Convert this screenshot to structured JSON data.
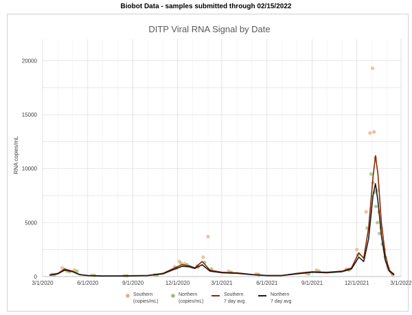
{
  "header": {
    "text": "Biobot Data - samples submitted through 02/15/2022"
  },
  "colors": {
    "southern_points": "#f0a878",
    "northern_points": "#90c070",
    "southern_avg": "#8b2500",
    "northern_avg": "#1a1a1a",
    "grid": "#d9d9d9"
  },
  "chart_data": {
    "type": "line",
    "title": "DITP Viral RNA Signal by Date",
    "ylabel": "RNA copies/mL",
    "xlabel": "",
    "ylim": [
      0,
      22000
    ],
    "yticks": [
      0,
      5000,
      10000,
      15000,
      20000
    ],
    "xlim": [
      "2020-03-01",
      "2022-03-01"
    ],
    "xticks": [
      "3/1/2020",
      "6/1/2020",
      "9/1/2020",
      "12/1/2020",
      "3/1/2021",
      "6/1/2021",
      "9/1/2021",
      "12/1/2021",
      "3/1/2022"
    ],
    "xtick_dates": [
      "2020-03-01",
      "2020-06-01",
      "2020-09-01",
      "2020-12-01",
      "2021-03-01",
      "2021-06-01",
      "2021-09-01",
      "2021-12-01",
      "2022-03-01"
    ],
    "grid": true,
    "legend_position": "bottom",
    "legend": [
      {
        "label": "Southern",
        "label2": "(copies/mL)",
        "kind": "marker",
        "color": "#f0a878"
      },
      {
        "label": "Northern",
        "label2": "(copies/mL)",
        "kind": "marker",
        "color": "#90c070"
      },
      {
        "label": "Southern",
        "label2": "7 day avg",
        "kind": "line",
        "color": "#8b2500"
      },
      {
        "label": "Northern",
        "label2": "7 day avg",
        "kind": "line",
        "color": "#1a1a1a"
      }
    ],
    "series": [
      {
        "name": "Southern 7 day avg",
        "x": [
          "2020-03-15",
          "2020-04-01",
          "2020-04-15",
          "2020-05-01",
          "2020-05-15",
          "2020-06-01",
          "2020-07-01",
          "2020-08-01",
          "2020-09-01",
          "2020-10-01",
          "2020-11-01",
          "2020-11-20",
          "2020-12-10",
          "2020-12-25",
          "2021-01-05",
          "2021-01-20",
          "2021-02-05",
          "2021-03-01",
          "2021-04-01",
          "2021-05-01",
          "2021-06-01",
          "2021-07-01",
          "2021-08-01",
          "2021-09-01",
          "2021-10-01",
          "2021-11-01",
          "2021-11-20",
          "2021-12-05",
          "2021-12-15",
          "2021-12-25",
          "2022-01-03",
          "2022-01-08",
          "2022-01-13",
          "2022-01-20",
          "2022-01-28",
          "2022-02-05",
          "2022-02-15"
        ],
        "y": [
          150,
          300,
          700,
          500,
          200,
          100,
          60,
          60,
          80,
          100,
          300,
          700,
          1100,
          1000,
          800,
          1400,
          600,
          400,
          350,
          200,
          100,
          100,
          300,
          450,
          400,
          500,
          800,
          2200,
          1700,
          4500,
          9200,
          11200,
          9500,
          5000,
          2000,
          600,
          200
        ]
      },
      {
        "name": "Northern 7 day avg",
        "x": [
          "2020-03-15",
          "2020-04-01",
          "2020-04-15",
          "2020-05-01",
          "2020-05-15",
          "2020-06-01",
          "2020-07-01",
          "2020-08-01",
          "2020-09-01",
          "2020-10-01",
          "2020-11-01",
          "2020-11-20",
          "2020-12-10",
          "2020-12-25",
          "2021-01-05",
          "2021-01-20",
          "2021-02-05",
          "2021-03-01",
          "2021-04-01",
          "2021-05-01",
          "2021-06-01",
          "2021-07-01",
          "2021-08-01",
          "2021-09-01",
          "2021-10-01",
          "2021-11-01",
          "2021-11-20",
          "2021-12-05",
          "2021-12-15",
          "2021-12-25",
          "2022-01-03",
          "2022-01-08",
          "2022-01-13",
          "2022-01-20",
          "2022-01-28",
          "2022-02-05",
          "2022-02-15"
        ],
        "y": [
          120,
          250,
          600,
          450,
          180,
          90,
          50,
          50,
          70,
          90,
          250,
          600,
          950,
          900,
          750,
          1100,
          500,
          350,
          300,
          180,
          90,
          90,
          250,
          400,
          350,
          450,
          700,
          1800,
          1400,
          3500,
          7500,
          8600,
          7000,
          3800,
          1500,
          500,
          150
        ]
      },
      {
        "name": "Southern (copies/mL)",
        "x": [
          "2020-03-20",
          "2020-04-10",
          "2020-04-20",
          "2020-05-05",
          "2020-06-10",
          "2020-08-15",
          "2020-10-15",
          "2020-11-25",
          "2020-12-05",
          "2020-12-15",
          "2021-01-10",
          "2021-01-22",
          "2021-02-01",
          "2021-03-15",
          "2021-05-10",
          "2021-08-20",
          "2021-09-10",
          "2021-11-10",
          "2021-12-01",
          "2021-12-20",
          "2021-12-28",
          "2022-01-02",
          "2022-01-05",
          "2022-01-08",
          "2022-01-11",
          "2022-01-15",
          "2022-01-20",
          "2022-01-26",
          "2022-02-02",
          "2022-02-10"
        ],
        "y": [
          200,
          800,
          500,
          600,
          120,
          80,
          150,
          900,
          1400,
          1200,
          1000,
          1800,
          3700,
          500,
          250,
          300,
          600,
          700,
          2500,
          6000,
          13300,
          19300,
          13400,
          11000,
          8000,
          6000,
          4500,
          2500,
          900,
          300
        ]
      },
      {
        "name": "Northern (copies/mL)",
        "x": [
          "2020-03-25",
          "2020-04-15",
          "2020-04-25",
          "2020-05-10",
          "2020-06-15",
          "2020-08-20",
          "2020-10-20",
          "2020-11-28",
          "2020-12-08",
          "2020-12-20",
          "2021-01-12",
          "2021-01-25",
          "2021-02-08",
          "2021-03-20",
          "2021-05-15",
          "2021-08-25",
          "2021-09-15",
          "2021-11-15",
          "2021-12-03",
          "2021-12-22",
          "2021-12-30",
          "2022-01-03",
          "2022-01-06",
          "2022-01-09",
          "2022-01-12",
          "2022-01-16",
          "2022-01-22",
          "2022-01-28",
          "2022-02-04",
          "2022-02-12"
        ],
        "y": [
          150,
          650,
          450,
          500,
          100,
          70,
          120,
          800,
          1200,
          1100,
          900,
          1300,
          700,
          400,
          200,
          250,
          500,
          600,
          2000,
          4500,
          9500,
          8700,
          7800,
          6500,
          5000,
          4000,
          3000,
          1800,
          700,
          200
        ]
      }
    ]
  }
}
